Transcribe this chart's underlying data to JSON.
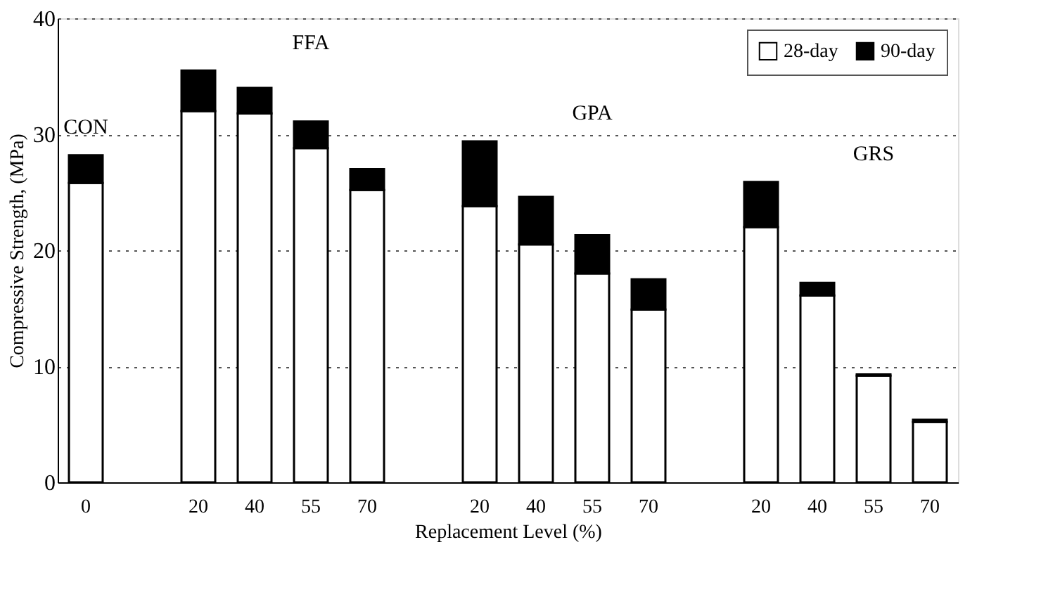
{
  "chart_data": {
    "type": "bar",
    "stacked": true,
    "xlabel": "Replacement Level (%)",
    "ylabel": "Compressive Strength, (MPa)",
    "categories": [
      "0",
      null,
      "20",
      "40",
      "55",
      "70",
      null,
      "20",
      "40",
      "55",
      "70",
      null,
      "20",
      "40",
      "55",
      "70"
    ],
    "series": [
      {
        "name": "28-day",
        "color": "#ffffff",
        "values": [
          25.8,
          null,
          32.0,
          31.8,
          28.8,
          25.2,
          null,
          23.8,
          20.5,
          18.0,
          14.9,
          null,
          22.0,
          16.1,
          9.2,
          5.2
        ]
      },
      {
        "name": "90-day",
        "color": "#000000",
        "values": [
          2.4,
          null,
          3.5,
          2.2,
          2.3,
          1.8,
          null,
          5.6,
          4.1,
          3.3,
          2.6,
          null,
          3.9,
          1.1,
          0.1,
          0.2
        ]
      }
    ],
    "ylim": [
      0,
      40
    ],
    "yticks": [
      0,
      10,
      20,
      30,
      40
    ],
    "grid": "y",
    "legend": "top right",
    "annotations": [
      "CON",
      "FFA",
      "GPA",
      "GRS"
    ]
  }
}
